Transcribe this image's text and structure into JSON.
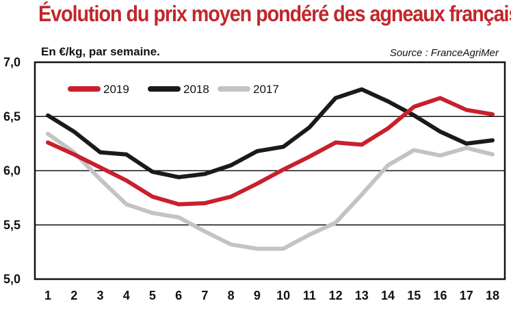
{
  "header": {
    "title": "Évolution du prix moyen pondéré des agneaux français",
    "subtitle": "En €/kg, par semaine.",
    "source": "Source : FranceAgriMer"
  },
  "chart_data": {
    "type": "line",
    "title": "Évolution du prix moyen pondéré des agneaux français",
    "subtitle": "En €/kg, par semaine.",
    "source": "Source : FranceAgriMer",
    "x": [
      1,
      2,
      3,
      4,
      5,
      6,
      7,
      8,
      9,
      10,
      11,
      12,
      13,
      14,
      15,
      16,
      17,
      18
    ],
    "x_tick_labels": [
      "1",
      "2",
      "3",
      "4",
      "5",
      "6",
      "7",
      "8",
      "9",
      "10",
      "11",
      "12",
      "13",
      "14",
      "15",
      "16",
      "17",
      "18"
    ],
    "ylim": [
      5.0,
      7.0
    ],
    "y_ticks": [
      5.0,
      5.5,
      6.0,
      6.5,
      7.0
    ],
    "y_tick_labels": [
      "5,0",
      "5,5",
      "6,0",
      "6,5",
      "7,0"
    ],
    "grid": "horizontal",
    "legend_position": "top-left",
    "series": [
      {
        "name": "2019",
        "color": "#c8202c",
        "values": [
          6.26,
          6.15,
          6.03,
          5.91,
          5.76,
          5.69,
          5.7,
          5.76,
          5.88,
          6.01,
          6.13,
          6.26,
          6.24,
          6.39,
          6.59,
          6.67,
          6.56,
          6.52
        ]
      },
      {
        "name": "2018",
        "color": "#1a1a1a",
        "values": [
          6.51,
          6.36,
          6.17,
          6.15,
          5.99,
          5.94,
          5.97,
          6.05,
          6.18,
          6.22,
          6.4,
          6.67,
          6.75,
          6.64,
          6.51,
          6.36,
          6.25,
          6.28
        ]
      },
      {
        "name": "2017",
        "color": "#c3c3c3",
        "values": [
          6.34,
          6.17,
          5.92,
          5.69,
          5.61,
          5.57,
          5.44,
          5.32,
          5.28,
          5.28,
          5.41,
          5.52,
          5.78,
          6.05,
          6.19,
          6.14,
          6.21,
          6.15
        ]
      }
    ]
  }
}
